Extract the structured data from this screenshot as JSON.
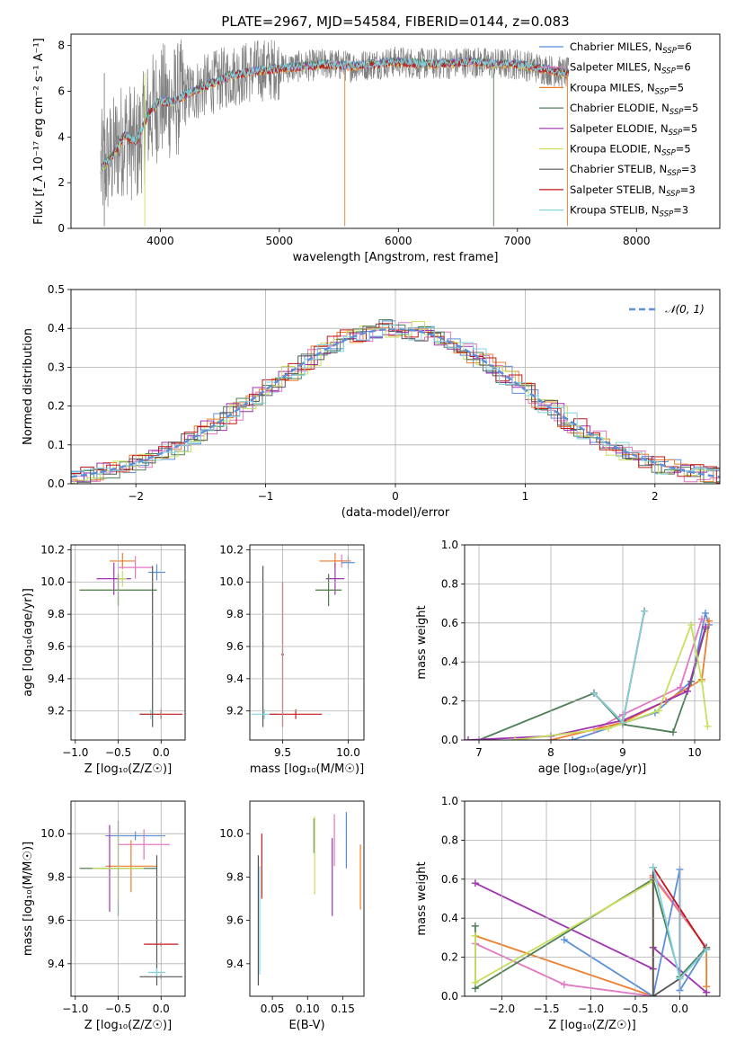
{
  "figure_title": "PLATE=2967, MJD=54584, FIBERID=0144, z=0.083",
  "colors": {
    "chabrier_miles": "#5b8fd9",
    "salpeter_miles": "#e377c2",
    "kroupa_miles": "#ee7e2c",
    "chabrier_elodie": "#4f7f56",
    "salpeter_elodie": "#a033b0",
    "kroupa_elodie": "#c7e05a",
    "chabrier_stelib": "#555555",
    "salpeter_stelib": "#c01818",
    "kroupa_stelib": "#7fd6e0",
    "data": "#808080"
  },
  "chart_data": [
    {
      "id": "spectrum",
      "type": "line",
      "title": "PLATE=2967, MJD=54584, FIBERID=0144, z=0.083",
      "xlabel": "wavelength [Angstrom, rest frame]",
      "ylabel": "Flux [f_λ 10⁻¹⁷ erg cm⁻² s⁻¹ A⁻¹]",
      "xlim": [
        3250,
        8700
      ],
      "ylim": [
        0,
        8.5
      ],
      "xticks": [
        "4000",
        "5000",
        "6000",
        "7000",
        "8000"
      ],
      "yticks": [
        "0",
        "2",
        "4",
        "6",
        "8"
      ],
      "grid": false,
      "legend_placement": "right",
      "data_envelope": {
        "x": [
          3500,
          3600,
          3700,
          3800,
          3900,
          4000,
          4100,
          4200,
          4400,
          4600,
          4800,
          5000,
          5200,
          5400,
          5600,
          5800,
          6000,
          6200,
          6400,
          6600,
          6800,
          7000,
          7200,
          7400
        ],
        "y": [
          2.6,
          3.2,
          4.1,
          3.5,
          4.9,
          5.6,
          5.5,
          5.8,
          6.3,
          6.7,
          6.9,
          7.0,
          7.1,
          7.2,
          7.1,
          7.2,
          7.3,
          7.2,
          7.2,
          7.3,
          7.2,
          7.2,
          7.0,
          6.8
        ]
      },
      "model_curve": {
        "x": [
          3500,
          3600,
          3700,
          3800,
          3900,
          4000,
          4100,
          4200,
          4400,
          4600,
          4800,
          5000,
          5200,
          5400,
          5600,
          5800,
          6000,
          6200,
          6400,
          6600,
          6800,
          7000,
          7200,
          7400
        ],
        "y": [
          2.6,
          3.2,
          4.1,
          3.8,
          5.0,
          5.6,
          5.5,
          5.8,
          6.3,
          6.7,
          6.9,
          7.0,
          7.1,
          7.2,
          7.1,
          7.2,
          7.3,
          7.2,
          7.2,
          7.3,
          7.2,
          7.2,
          7.0,
          6.8
        ]
      },
      "legend": [
        {
          "label": "Chabrier MILES, N",
          "sub": "SSP",
          "count": "=6",
          "color": "chabrier_miles"
        },
        {
          "label": "Salpeter MILES, N",
          "sub": "SSP",
          "count": "=6",
          "color": "salpeter_miles"
        },
        {
          "label": "Kroupa MILES, N",
          "sub": "SSP",
          "count": "=5",
          "color": "kroupa_miles"
        },
        {
          "label": "Chabrier ELODIE, N",
          "sub": "SSP",
          "count": "=5",
          "color": "chabrier_elodie"
        },
        {
          "label": "Salpeter ELODIE, N",
          "sub": "SSP",
          "count": "=5",
          "color": "salpeter_elodie"
        },
        {
          "label": "Kroupa ELODIE, N",
          "sub": "SSP",
          "count": "=5",
          "color": "kroupa_elodie"
        },
        {
          "label": "Chabrier STELIB, N",
          "sub": "SSP",
          "count": "=3",
          "color": "chabrier_stelib"
        },
        {
          "label": "Salpeter STELIB, N",
          "sub": "SSP",
          "count": "=3",
          "color": "salpeter_stelib"
        },
        {
          "label": "Kroupa STELIB, N",
          "sub": "SSP",
          "count": "=3",
          "color": "kroupa_stelib"
        }
      ]
    },
    {
      "id": "residuals",
      "type": "histogram",
      "xlabel": "(data-model)/error",
      "ylabel": "Normed distribution",
      "xlim": [
        -2.5,
        2.5
      ],
      "ylim": [
        0,
        0.5
      ],
      "xticks": [
        "−2",
        "−1",
        "0",
        "1",
        "2"
      ],
      "yticks": [
        "0.0",
        "0.1",
        "0.2",
        "0.3",
        "0.4",
        "0.5"
      ],
      "grid": true,
      "legend_placement": "top-right",
      "reference_label": "𝒩(0, 1)",
      "reference_color": "chabrier_miles"
    },
    {
      "id": "age_vs_Z",
      "type": "errorbar",
      "xlabel": "Z [log₁₀(Z/Z☉)]",
      "ylabel": "age  [log₁₀(age/yr)]",
      "xlim": [
        -1.05,
        0.28
      ],
      "ylim": [
        9.02,
        10.23
      ],
      "xticks": [
        "−1.0",
        "−0.5",
        "0.0"
      ],
      "yticks": [
        "9.2",
        "9.4",
        "9.6",
        "9.8",
        "10.0",
        "10.2"
      ],
      "grid": true,
      "points": [
        {
          "x": -0.45,
          "y": 10.13,
          "xerr": 0.15,
          "yerr": 0.05,
          "color": "kroupa_miles"
        },
        {
          "x": -0.3,
          "y": 10.09,
          "xerr": 0.2,
          "yerr": 0.07,
          "color": "salpeter_miles"
        },
        {
          "x": -0.05,
          "y": 10.06,
          "xerr": 0.1,
          "yerr": 0.05,
          "color": "chabrier_miles"
        },
        {
          "x": -0.55,
          "y": 10.02,
          "xerr": 0.2,
          "yerr": 0.1,
          "color": "salpeter_elodie"
        },
        {
          "x": -0.45,
          "y": 10.02,
          "xerr": 0.05,
          "yerr": 0.05,
          "color": "kroupa_elodie"
        },
        {
          "x": -0.5,
          "y": 9.95,
          "xerr": 0.45,
          "yerr": 0.1,
          "color": "kroupa_elodie"
        },
        {
          "x": -0.5,
          "y": 9.95,
          "xerr": 0.45,
          "yerr": 0.1,
          "color": "chabrier_elodie"
        },
        {
          "x": -0.1,
          "y": 9.6,
          "xerr": 0.01,
          "yerr": 0.5,
          "color": "chabrier_stelib"
        },
        {
          "x": -0.12,
          "y": 9.18,
          "xerr": 0.13,
          "yerr": 0.03,
          "color": "kroupa_stelib"
        },
        {
          "x": 0.0,
          "y": 9.18,
          "xerr": 0.25,
          "yerr": 0.03,
          "color": "salpeter_stelib"
        }
      ]
    },
    {
      "id": "age_vs_mass",
      "type": "errorbar",
      "xlabel": "mass [log₁₀(M/M☉)]",
      "ylabel": "",
      "xlim": [
        9.25,
        10.12
      ],
      "ylim": [
        9.02,
        10.23
      ],
      "xticks": [
        "9.5",
        "10.0"
      ],
      "yticks": [
        "9.2",
        "9.4",
        "9.6",
        "9.8",
        "10.0",
        "10.2"
      ],
      "grid": true,
      "points": [
        {
          "x": 9.95,
          "y": 10.13,
          "xerr": 0.07,
          "yerr": 0.04,
          "color": "salpeter_miles"
        },
        {
          "x": 9.9,
          "y": 10.13,
          "xerr": 0.12,
          "yerr": 0.05,
          "color": "kroupa_miles"
        },
        {
          "x": 10.0,
          "y": 10.12,
          "xerr": 0.05,
          "yerr": 0.04,
          "color": "chabrier_miles"
        },
        {
          "x": 9.9,
          "y": 10.02,
          "xerr": 0.07,
          "yerr": 0.1,
          "color": "salpeter_elodie"
        },
        {
          "x": 9.85,
          "y": 9.95,
          "xerr": 0.1,
          "yerr": 0.1,
          "color": "kroupa_elodie"
        },
        {
          "x": 9.85,
          "y": 9.95,
          "xerr": 0.1,
          "yerr": 0.1,
          "color": "chabrier_elodie"
        },
        {
          "x": 9.35,
          "y": 9.6,
          "xerr": 0.01,
          "yerr": 0.5,
          "color": "chabrier_stelib"
        },
        {
          "x": 9.5,
          "y": 9.55,
          "xerr": 0.01,
          "yerr": 0.45,
          "color": "salpeter_stelib"
        },
        {
          "x": 9.36,
          "y": 9.18,
          "xerr": 0.1,
          "yerr": 0.03,
          "color": "kroupa_stelib"
        },
        {
          "x": 9.6,
          "y": 9.18,
          "xerr": 0.2,
          "yerr": 0.03,
          "color": "salpeter_stelib"
        }
      ]
    },
    {
      "id": "mass_weight_vs_age",
      "type": "line",
      "xlabel": "age  [log₁₀(age/yr)]",
      "ylabel": "mass weight",
      "xlim": [
        6.8,
        10.35
      ],
      "ylim": [
        0,
        1.0
      ],
      "xticks": [
        "7",
        "8",
        "9",
        "10"
      ],
      "yticks": [
        "0.0",
        "0.2",
        "0.4",
        "0.6",
        "0.8",
        "1.0"
      ],
      "grid": true,
      "series": [
        {
          "color": "chabrier_miles",
          "x": [
            8.3,
            9.45,
            9.95,
            10.15,
            10.2
          ],
          "y": [
            0.0,
            0.14,
            0.3,
            0.65,
            0.59
          ]
        },
        {
          "color": "salpeter_miles",
          "x": [
            7.5,
            8.6,
            9.0,
            9.8,
            10.1
          ],
          "y": [
            0.0,
            0.05,
            0.13,
            0.27,
            0.62
          ]
        },
        {
          "color": "kroupa_miles",
          "x": [
            8.0,
            9.0,
            9.6,
            10.1,
            10.2
          ],
          "y": [
            0.0,
            0.09,
            0.2,
            0.31,
            0.61
          ]
        },
        {
          "color": "chabrier_elodie",
          "x": [
            7.0,
            8.6,
            9.0,
            9.7,
            9.95,
            10.15
          ],
          "y": [
            0.0,
            0.24,
            0.08,
            0.04,
            0.3,
            0.57
          ]
        },
        {
          "color": "salpeter_elodie",
          "x": [
            6.85,
            8.0,
            9.0,
            9.9,
            10.15
          ],
          "y": [
            0.0,
            0.02,
            0.1,
            0.25,
            0.58
          ]
        },
        {
          "color": "kroupa_elodie",
          "x": [
            7.5,
            8.8,
            9.5,
            9.95,
            10.1,
            10.18
          ],
          "y": [
            0.0,
            0.06,
            0.15,
            0.59,
            0.3,
            0.07
          ]
        },
        {
          "color": "chabrier_stelib",
          "x": [
            8.6,
            9.0,
            9.3
          ],
          "y": [
            0.24,
            0.09,
            0.66
          ]
        },
        {
          "color": "salpeter_stelib",
          "x": [
            8.6,
            9.0,
            9.3
          ],
          "y": [
            0.24,
            0.09,
            0.66
          ]
        },
        {
          "color": "kroupa_stelib",
          "x": [
            8.6,
            9.0,
            9.3
          ],
          "y": [
            0.24,
            0.09,
            0.66
          ]
        }
      ]
    },
    {
      "id": "mass_vs_Z",
      "type": "errorbar",
      "xlabel": "Z [log₁₀(Z/Z☉)]",
      "ylabel": "mass [log₁₀(M/M☉)]",
      "xlim": [
        -1.05,
        0.28
      ],
      "ylim": [
        9.25,
        10.15
      ],
      "xticks": [
        "−1.0",
        "−0.5",
        "0.0"
      ],
      "yticks": [
        "9.4",
        "9.6",
        "9.8",
        "10.0"
      ],
      "grid": true,
      "points": [
        {
          "x": -0.3,
          "y": 9.99,
          "xerr": 0.35,
          "yerr": 0.02,
          "color": "chabrier_miles"
        },
        {
          "x": -0.2,
          "y": 9.95,
          "xerr": 0.3,
          "yerr": 0.07,
          "color": "salpeter_miles"
        },
        {
          "x": -0.35,
          "y": 9.85,
          "xerr": 0.3,
          "yerr": 0.12,
          "color": "kroupa_miles"
        },
        {
          "x": -0.6,
          "y": 9.84,
          "xerr": 0.1,
          "yerr": 0.2,
          "color": "salpeter_elodie"
        },
        {
          "x": -0.5,
          "y": 9.84,
          "xerr": 0.45,
          "yerr": 0.22,
          "color": "chabrier_elodie"
        },
        {
          "x": -0.5,
          "y": 9.84,
          "xerr": 0.3,
          "yerr": 0.15,
          "color": "kroupa_elodie"
        },
        {
          "x": -0.05,
          "y": 9.6,
          "xerr": 0.01,
          "yerr": 0.3,
          "color": "chabrier_stelib"
        },
        {
          "x": 0.0,
          "y": 9.49,
          "xerr": 0.2,
          "yerr": 0.01,
          "color": "salpeter_stelib"
        },
        {
          "x": -0.05,
          "y": 9.36,
          "xerr": 0.1,
          "yerr": 0.02,
          "color": "kroupa_stelib"
        },
        {
          "x": 0.0,
          "y": 9.34,
          "xerr": 0.25,
          "yerr": 0.01,
          "color": "chabrier_stelib"
        }
      ]
    },
    {
      "id": "mass_vs_ebv",
      "type": "errorbar",
      "xlabel": "E(B-V)",
      "ylabel": "",
      "xlim": [
        0.018,
        0.18
      ],
      "ylim": [
        9.25,
        10.15
      ],
      "xticks": [
        "0.05",
        "0.10",
        "0.15"
      ],
      "yticks": [
        "9.4",
        "9.6",
        "9.8",
        "10.0"
      ],
      "grid": false,
      "points": [
        {
          "x": 0.035,
          "y": 9.85,
          "xerr": 0.0,
          "yerr": 0.15,
          "color": "salpeter_stelib"
        },
        {
          "x": 0.03,
          "y": 9.6,
          "xerr": 0.0,
          "yerr": 0.3,
          "color": "chabrier_stelib"
        },
        {
          "x": 0.032,
          "y": 9.6,
          "xerr": 0.0,
          "yerr": 0.25,
          "color": "kroupa_stelib"
        },
        {
          "x": 0.109,
          "y": 9.99,
          "xerr": 0.0,
          "yerr": 0.08,
          "color": "chabrier_elodie"
        },
        {
          "x": 0.11,
          "y": 9.9,
          "xerr": 0.0,
          "yerr": 0.18,
          "color": "kroupa_elodie"
        },
        {
          "x": 0.135,
          "y": 9.8,
          "xerr": 0.0,
          "yerr": 0.18,
          "color": "salpeter_elodie"
        },
        {
          "x": 0.138,
          "y": 9.97,
          "xerr": 0.0,
          "yerr": 0.12,
          "color": "salpeter_miles"
        },
        {
          "x": 0.155,
          "y": 9.97,
          "xerr": 0.0,
          "yerr": 0.13,
          "color": "chabrier_miles"
        },
        {
          "x": 0.175,
          "y": 9.8,
          "xerr": 0.0,
          "yerr": 0.15,
          "color": "kroupa_miles"
        }
      ]
    },
    {
      "id": "mass_weight_vs_Z",
      "type": "line",
      "xlabel": "Z [log₁₀(Z/Z☉)]",
      "ylabel": "mass weight",
      "xlim": [
        -2.42,
        0.45
      ],
      "ylim": [
        0,
        1.0
      ],
      "xticks": [
        "−2.0",
        "−1.5",
        "−1.0",
        "−0.5",
        "0.0"
      ],
      "yticks": [
        "0.0",
        "0.2",
        "0.4",
        "0.6",
        "0.8",
        "1.0"
      ],
      "grid": true,
      "series": [
        {
          "color": "salpeter_elodie",
          "x": [
            -2.3,
            -0.3,
            -0.3,
            0.3,
            0.3
          ],
          "y": [
            0.58,
            0.14,
            0.25,
            0.02,
            0.02
          ]
        },
        {
          "color": "kroupa_miles",
          "x": [
            -2.3,
            -0.3,
            -0.3,
            0.3,
            0.3
          ],
          "y": [
            0.31,
            0.0,
            0.61,
            0.25,
            0.05
          ]
        },
        {
          "color": "salpeter_miles",
          "x": [
            -2.3,
            -1.3,
            -0.3,
            -0.3,
            0.3
          ],
          "y": [
            0.27,
            0.06,
            0.0,
            0.62,
            0.25
          ]
        },
        {
          "color": "chabrier_miles",
          "x": [
            -1.3,
            -0.3,
            0.0,
            0.0,
            0.3
          ],
          "y": [
            0.29,
            0.0,
            0.65,
            0.03,
            0.25
          ]
        },
        {
          "color": "chabrier_elodie",
          "x": [
            -2.3,
            -2.3,
            -0.3,
            0.0,
            0.3
          ],
          "y": [
            0.36,
            0.04,
            0.6,
            0.1,
            0.25
          ]
        },
        {
          "color": "kroupa_elodie",
          "x": [
            -2.3,
            -2.3,
            -0.3,
            -0.3
          ],
          "y": [
            0.31,
            0.07,
            0.59,
            0.0
          ]
        },
        {
          "color": "chabrier_stelib",
          "x": [
            -0.3,
            -0.3,
            0.0,
            0.3
          ],
          "y": [
            0.66,
            0.0,
            0.09,
            0.24
          ]
        },
        {
          "color": "salpeter_stelib",
          "x": [
            -0.3,
            0.3
          ],
          "y": [
            0.66,
            0.24
          ]
        },
        {
          "color": "kroupa_stelib",
          "x": [
            -0.3,
            0.0,
            0.3
          ],
          "y": [
            0.66,
            0.09,
            0.24
          ]
        }
      ]
    }
  ]
}
